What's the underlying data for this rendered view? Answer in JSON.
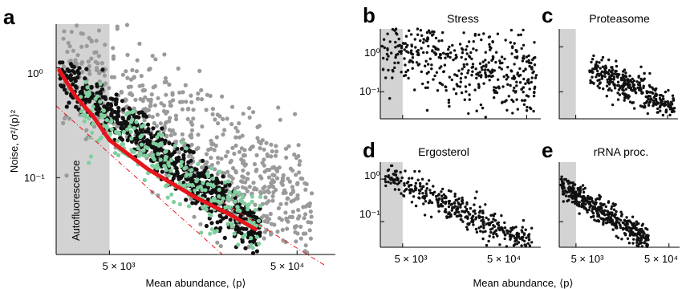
{
  "panels": {
    "a": {
      "label": "a",
      "xlabel": "Mean abundance, ⟨p⟩",
      "ylabel": "Noise, σ²/⟨p⟩²",
      "shade_text": "Autofluorescence"
    },
    "b": {
      "label": "b",
      "title": "Stress"
    },
    "c": {
      "label": "c",
      "title": "Proteasome"
    },
    "d": {
      "label": "d",
      "title": "Ergosterol"
    },
    "e": {
      "label": "e",
      "title": "rRNA proc.",
      "xlabel": "Mean abundance, ⟨p⟩"
    }
  },
  "ticks": {
    "y_1": "10⁰",
    "y_01": "10⁻¹",
    "x_5e3": "5 × 10³",
    "x_5e4": "5 × 10⁴"
  },
  "colors": {
    "all_proteins": "#9a9a9a",
    "highlighted_dark": "#111111",
    "highlighted_green": "#7fcf9f",
    "fit_line": "#e8141c",
    "shade": "#d3d3d3"
  },
  "chart_data": [
    {
      "panel": "a",
      "type": "scatter",
      "xscale": "log",
      "yscale": "log",
      "xlim": [
        2600,
        80000
      ],
      "ylim": [
        0.02,
        2.5
      ],
      "autofluorescence_upper_x": 5000,
      "series": [
        {
          "name": "",
          "color": "#9a9a9a",
          "trend": {
            "from": [
              2800,
              1.0
            ],
            "to": [
              60000,
              0.05
            ],
            "spread": 0.55,
            "count": 650
          }
        },
        {
          "name": "",
          "color": "#111111",
          "trend": {
            "from": [
              2700,
              0.9
            ],
            "to": [
              32000,
              0.03
            ],
            "spread": 0.22,
            "count": 700
          }
        },
        {
          "name": "",
          "color": "#7fcf9f",
          "trend": {
            "from": [
              3500,
              0.45
            ],
            "to": [
              32000,
              0.035
            ],
            "spread": 0.28,
            "count": 260
          }
        }
      ],
      "fit_line": {
        "x": [
          2700,
          3300,
          4100,
          5000,
          8000,
          14000,
          22000,
          30000
        ],
        "y": [
          0.95,
          0.55,
          0.36,
          0.22,
          0.12,
          0.068,
          0.046,
          0.034
        ]
      },
      "reference_lines": [
        {
          "x": [
            2600,
            20000
          ],
          "y": [
            0.45,
            0.02
          ]
        },
        {
          "x": [
            20000,
            70000
          ],
          "y": [
            0.06,
            0.016
          ]
        }
      ]
    },
    {
      "panel": "b",
      "type": "scatter",
      "xscale": "log",
      "yscale": "log",
      "xlim": [
        3300,
        65000
      ],
      "ylim": [
        0.025,
        2.5
      ],
      "autofluorescence_upper_x": 5000,
      "trend": {
        "from": [
          3400,
          1.3
        ],
        "to": [
          60000,
          0.13
        ],
        "spread": 1.0,
        "count": 420
      }
    },
    {
      "panel": "c",
      "type": "scatter",
      "xscale": "log",
      "yscale": "log",
      "xlim": [
        3300,
        65000
      ],
      "ylim": [
        0.025,
        2.5
      ],
      "autofluorescence_upper_x": 5000,
      "trend": {
        "from": [
          7000,
          0.35
        ],
        "to": [
          60000,
          0.045
        ],
        "spread": 0.35,
        "count": 340
      }
    },
    {
      "panel": "d",
      "type": "scatter",
      "xscale": "log",
      "yscale": "log",
      "xlim": [
        3300,
        65000
      ],
      "ylim": [
        0.025,
        2.5
      ],
      "autofluorescence_upper_x": 5000,
      "trend": {
        "from": [
          3600,
          1.2
        ],
        "to": [
          55000,
          0.03
        ],
        "spread": 0.35,
        "count": 380
      }
    },
    {
      "panel": "e",
      "type": "scatter",
      "xscale": "log",
      "yscale": "log",
      "xlim": [
        3300,
        65000
      ],
      "ylim": [
        0.025,
        2.5
      ],
      "autofluorescence_upper_x": 5000,
      "trend": {
        "from": [
          3400,
          0.7
        ],
        "to": [
          30000,
          0.035
        ],
        "spread": 0.3,
        "count": 420
      }
    }
  ]
}
